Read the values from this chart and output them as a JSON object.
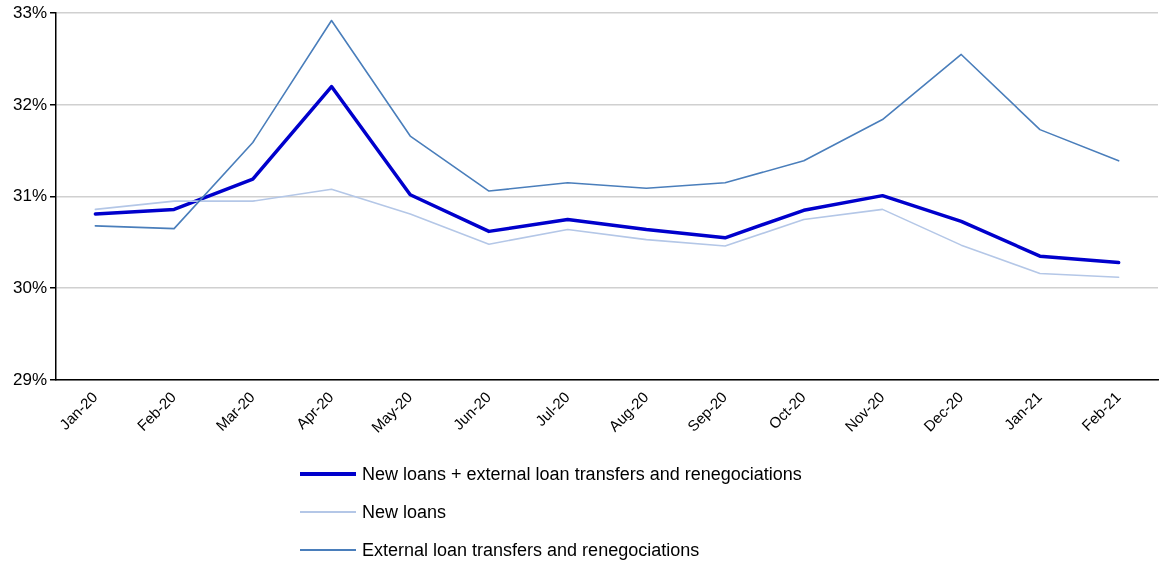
{
  "chart_data": {
    "type": "line",
    "categories": [
      "Jan-20",
      "Feb-20",
      "Mar-20",
      "Apr-20",
      "May-20",
      "Jun-20",
      "Jul-20",
      "Aug-20",
      "Sep-20",
      "Oct-20",
      "Nov-20",
      "Dec-20",
      "Jan-21",
      "Feb-21"
    ],
    "series": [
      {
        "name": "New loans + external loan transfers and renegociations",
        "color": "#0000cc",
        "values": [
          30.81,
          30.86,
          31.19,
          32.2,
          31.02,
          30.62,
          30.75,
          30.64,
          30.55,
          30.85,
          31.01,
          30.73,
          30.35,
          30.28
        ]
      },
      {
        "name": "New loans",
        "color": "#b4c7e7",
        "values": [
          30.86,
          30.95,
          30.95,
          31.08,
          30.81,
          30.48,
          30.64,
          30.53,
          30.46,
          30.75,
          30.86,
          30.47,
          30.16,
          30.12
        ]
      },
      {
        "name": "External loan transfers and renegociations",
        "color": "#4a7ebb",
        "values": [
          30.68,
          30.65,
          31.59,
          32.92,
          31.66,
          31.06,
          31.15,
          31.09,
          31.15,
          31.39,
          31.84,
          32.55,
          31.73,
          31.39
        ]
      }
    ],
    "ylim": [
      29,
      33
    ],
    "yticks": [
      {
        "value": 29,
        "label": "29%"
      },
      {
        "value": 30,
        "label": "30%"
      },
      {
        "value": 31,
        "label": "31%"
      },
      {
        "value": 32,
        "label": "32%"
      },
      {
        "value": 33,
        "label": "33%"
      }
    ],
    "grid": "y",
    "legend": "bottom",
    "marker": "none",
    "line_style": "solid"
  }
}
